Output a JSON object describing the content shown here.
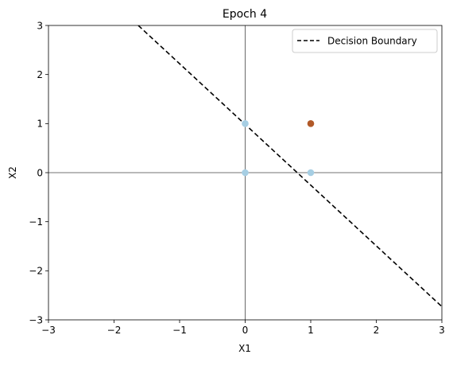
{
  "chart_data": {
    "type": "scatter",
    "title": "Epoch 4",
    "xlabel": "X1",
    "ylabel": "X2",
    "xlim": [
      -3,
      3
    ],
    "ylim": [
      -3,
      3
    ],
    "xticks": [
      -3,
      -2,
      -1,
      0,
      1,
      2,
      3
    ],
    "yticks": [
      -3,
      -2,
      -1,
      0,
      1,
      2,
      3
    ],
    "tick_labels_x": [
      "−3",
      "−2",
      "−1",
      "0",
      "1",
      "2",
      "3"
    ],
    "tick_labels_y": [
      "−3",
      "−2",
      "−1",
      "0",
      "1",
      "2",
      "3"
    ],
    "grid": false,
    "legend_position": "top-right",
    "points": [
      {
        "x": 0,
        "y": 0,
        "class": 0,
        "color": "#a6cee3"
      },
      {
        "x": 0,
        "y": 1,
        "class": 0,
        "color": "#a6cee3"
      },
      {
        "x": 1,
        "y": 0,
        "class": 0,
        "color": "#a6cee3"
      },
      {
        "x": 1,
        "y": 1,
        "class": 1,
        "color": "#b15928"
      }
    ],
    "boundary": {
      "name": "Decision Boundary",
      "style": "dashed",
      "color": "#000000",
      "points": [
        [
          -1.63,
          3.0
        ],
        [
          3.0,
          -2.73
        ]
      ]
    },
    "reference_lines": {
      "x": 0,
      "y": 0,
      "color": "#444444"
    }
  }
}
